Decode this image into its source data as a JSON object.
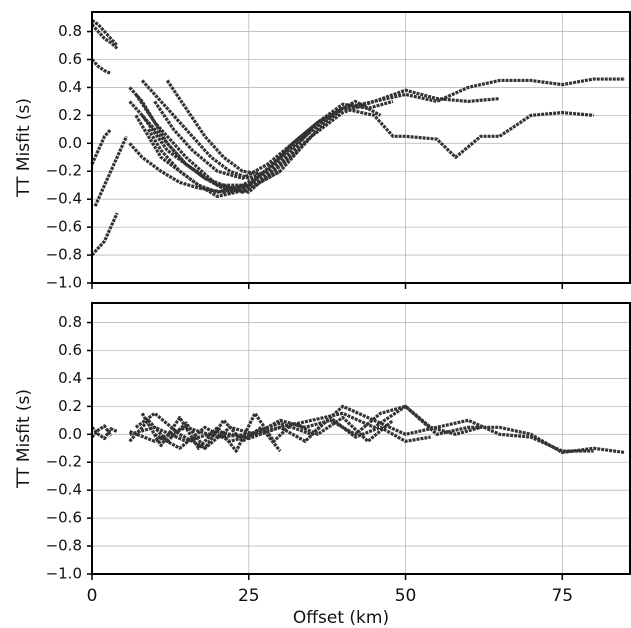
{
  "chart_data": [
    {
      "type": "line",
      "ylabel": "TT Misfit (s)",
      "color": "#333333",
      "grid": true,
      "xlim": [
        0,
        85.8
      ],
      "xticks": [
        0,
        25,
        50,
        75
      ],
      "ylim": [
        -1.0,
        0.94
      ],
      "yticks": [
        {
          "value": -1.0,
          "label": "−1.0"
        },
        {
          "value": -0.8,
          "label": "−0.8"
        },
        {
          "value": -0.6,
          "label": "−0.6"
        },
        {
          "value": -0.4,
          "label": "−0.4"
        },
        {
          "value": -0.2,
          "label": "−0.2"
        },
        {
          "value": 0,
          "label": "0.0"
        },
        0.2,
        0.4,
        0.6,
        0.8
      ],
      "series": [
        {
          "x": [
            0,
            1,
            2,
            3,
            4
          ],
          "values": [
            0.88,
            0.85,
            0.8,
            0.75,
            0.7
          ]
        },
        {
          "x": [
            0,
            1,
            2,
            3,
            4
          ],
          "values": [
            0.85,
            0.8,
            0.75,
            0.72,
            0.68
          ]
        },
        {
          "x": [
            0,
            1,
            2,
            3
          ],
          "values": [
            0.6,
            0.55,
            0.52,
            0.5
          ]
        },
        {
          "x": [
            0.5,
            1.5,
            2.5,
            3.5,
            4.5,
            5.5
          ],
          "values": [
            -0.45,
            -0.35,
            -0.25,
            -0.15,
            -0.05,
            0.05
          ]
        },
        {
          "x": [
            0,
            1,
            2,
            3,
            4
          ],
          "values": [
            -0.8,
            -0.75,
            -0.7,
            -0.6,
            -0.5
          ]
        },
        {
          "x": [
            0,
            1,
            2,
            3
          ],
          "values": [
            -0.15,
            -0.05,
            0.05,
            0.1
          ]
        },
        {
          "x": [
            6,
            10,
            15,
            20,
            25,
            30,
            35,
            40,
            45,
            50,
            55,
            60,
            65,
            70,
            75,
            80,
            85
          ],
          "values": [
            0.3,
            0.1,
            -0.15,
            -0.3,
            -0.3,
            -0.1,
            0.1,
            0.25,
            0.3,
            0.35,
            0.3,
            0.4,
            0.45,
            0.45,
            0.42,
            0.46,
            0.46
          ]
        },
        {
          "x": [
            7,
            10,
            15,
            20,
            25,
            30,
            35,
            40,
            45,
            50,
            55,
            60,
            65
          ],
          "values": [
            0.35,
            0.15,
            -0.1,
            -0.3,
            -0.35,
            -0.15,
            0.05,
            0.22,
            0.3,
            0.38,
            0.32,
            0.3,
            0.32
          ]
        },
        {
          "x": [
            8,
            12,
            18,
            24,
            30,
            36,
            40,
            45,
            48,
            50,
            55,
            58,
            62,
            65,
            70,
            75,
            80
          ],
          "values": [
            0.2,
            -0.05,
            -0.25,
            -0.35,
            -0.2,
            0.1,
            0.25,
            0.2,
            0.05,
            0.05,
            0.03,
            -0.1,
            0.05,
            0.05,
            0.2,
            0.22,
            0.2
          ]
        },
        {
          "x": [
            6,
            8,
            10,
            12,
            15,
            18,
            20,
            22,
            25
          ],
          "values": [
            0.4,
            0.3,
            0.15,
            0.0,
            -0.15,
            -0.25,
            -0.3,
            -0.35,
            -0.3
          ]
        },
        {
          "x": [
            7,
            9,
            11,
            14,
            17,
            20,
            23,
            26,
            30
          ],
          "values": [
            0.2,
            0.05,
            -0.1,
            -0.2,
            -0.3,
            -0.38,
            -0.35,
            -0.3,
            -0.2
          ]
        },
        {
          "x": [
            8,
            10,
            13,
            16,
            19,
            22,
            25,
            28,
            32,
            35
          ],
          "values": [
            0.45,
            0.35,
            0.2,
            0.05,
            -0.1,
            -0.2,
            -0.25,
            -0.2,
            -0.05,
            0.1
          ]
        },
        {
          "x": [
            9,
            11,
            14,
            17,
            20,
            24,
            28,
            32,
            36,
            40
          ],
          "values": [
            0.1,
            -0.05,
            -0.2,
            -0.3,
            -0.35,
            -0.3,
            -0.2,
            0.0,
            0.15,
            0.25
          ]
        },
        {
          "x": [
            6,
            8,
            11,
            14,
            17,
            21,
            25,
            29,
            33
          ],
          "values": [
            0.0,
            -0.1,
            -0.2,
            -0.28,
            -0.32,
            -0.35,
            -0.3,
            -0.2,
            -0.05
          ]
        },
        {
          "x": [
            10,
            13,
            16,
            20,
            24,
            28,
            32,
            36,
            40,
            44,
            48
          ],
          "values": [
            0.3,
            0.1,
            -0.05,
            -0.2,
            -0.25,
            -0.15,
            0.0,
            0.15,
            0.28,
            0.25,
            0.3
          ]
        },
        {
          "x": [
            12,
            15,
            18,
            21,
            24,
            27,
            30,
            34,
            38,
            42,
            46
          ],
          "values": [
            0.45,
            0.25,
            0.05,
            -0.1,
            -0.2,
            -0.22,
            -0.1,
            0.05,
            0.2,
            0.3,
            0.2
          ]
        }
      ]
    },
    {
      "type": "line",
      "ylabel": "TT Misfit (s)",
      "xlabel": "Offset (km)",
      "color": "#333333",
      "grid": true,
      "xlim": [
        0,
        85.8
      ],
      "xticks": [
        0,
        25,
        50,
        75
      ],
      "ylim": [
        -1.0,
        0.94
      ],
      "yticks": [
        {
          "value": -1.0,
          "label": "−1.0"
        },
        {
          "value": -0.8,
          "label": "−0.8"
        },
        {
          "value": -0.6,
          "label": "−0.6"
        },
        {
          "value": -0.4,
          "label": "−0.4"
        },
        {
          "value": -0.2,
          "label": "−0.2"
        },
        {
          "value": 0,
          "label": "0.0"
        },
        0.2,
        0.4,
        0.6,
        0.8
      ],
      "series": [
        {
          "x": [
            0,
            1,
            2,
            3,
            4
          ],
          "values": [
            0.05,
            0.0,
            -0.03,
            0.04,
            0.02
          ]
        },
        {
          "x": [
            0,
            1,
            2,
            3
          ],
          "values": [
            -0.02,
            0.03,
            0.06,
            -0.01
          ]
        },
        {
          "x": [
            6,
            10,
            15,
            20,
            25,
            30,
            35,
            40,
            45,
            50,
            55,
            60,
            65,
            70,
            75,
            80,
            85
          ],
          "values": [
            0.0,
            0.05,
            -0.05,
            0.02,
            -0.03,
            0.05,
            0.1,
            0.15,
            0.05,
            0.2,
            0.0,
            0.05,
            0.05,
            0.0,
            -0.13,
            -0.1,
            -0.13
          ]
        },
        {
          "x": [
            6,
            10,
            15,
            20,
            25,
            30,
            35,
            40,
            45,
            50,
            55,
            60,
            65,
            70,
            75,
            80
          ],
          "values": [
            0.02,
            -0.05,
            0.05,
            -0.02,
            0.0,
            0.08,
            0.0,
            0.2,
            0.1,
            0.0,
            0.05,
            0.1,
            0.0,
            -0.02,
            -0.12,
            -0.12
          ]
        },
        {
          "x": [
            7,
            10,
            14,
            18,
            22,
            26,
            30,
            34,
            38,
            42,
            46,
            50,
            54,
            58,
            62
          ],
          "values": [
            0.05,
            0.15,
            0.0,
            -0.1,
            0.05,
            0.0,
            0.1,
            0.05,
            0.1,
            0.0,
            0.15,
            0.2,
            0.05,
            0.0,
            0.05
          ]
        },
        {
          "x": [
            6,
            9,
            12,
            15,
            18,
            21,
            24,
            27,
            30
          ],
          "values": [
            -0.05,
            0.1,
            -0.05,
            0.08,
            -0.1,
            0.1,
            -0.05,
            0.05,
            -0.12
          ]
        },
        {
          "x": [
            8,
            11,
            14,
            17,
            20,
            23,
            26,
            29,
            32,
            36,
            40,
            44,
            48
          ],
          "values": [
            0.15,
            -0.08,
            0.12,
            -0.1,
            0.05,
            -0.12,
            0.15,
            -0.05,
            0.08,
            0.0,
            0.12,
            -0.05,
            0.1
          ]
        },
        {
          "x": [
            10,
            14,
            18,
            22,
            26,
            30,
            34,
            38,
            42,
            46,
            50,
            54
          ],
          "values": [
            0.0,
            -0.1,
            0.05,
            -0.05,
            0.0,
            0.05,
            -0.05,
            0.12,
            -0.02,
            0.05,
            -0.05,
            -0.02
          ]
        }
      ]
    }
  ]
}
